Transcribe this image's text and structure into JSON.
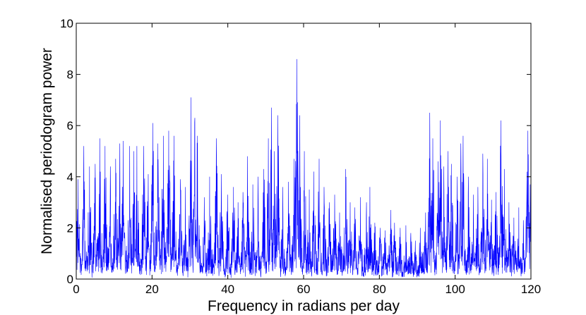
{
  "chart_data": {
    "type": "line",
    "title": "",
    "xlabel": "Frequency in radians per day",
    "ylabel": "Normalised periodogram power",
    "xlim": [
      0,
      120
    ],
    "ylim": [
      0,
      10
    ],
    "xticks": [
      0,
      20,
      40,
      60,
      80,
      100,
      120
    ],
    "yticks": [
      0,
      2,
      4,
      6,
      8,
      10
    ],
    "grid": false,
    "legend": "none",
    "line_color": "#0000ff",
    "peaks": [
      {
        "x": 0.5,
        "y": 3.9
      },
      {
        "x": 2.0,
        "y": 5.2
      },
      {
        "x": 3.5,
        "y": 4.4
      },
      {
        "x": 5.0,
        "y": 4.5
      },
      {
        "x": 6.2,
        "y": 5.5
      },
      {
        "x": 7.6,
        "y": 5.2
      },
      {
        "x": 9.0,
        "y": 4.4
      },
      {
        "x": 10.4,
        "y": 4.7
      },
      {
        "x": 11.5,
        "y": 5.3
      },
      {
        "x": 12.4,
        "y": 5.4
      },
      {
        "x": 14.1,
        "y": 5.2
      },
      {
        "x": 15.2,
        "y": 5.0
      },
      {
        "x": 16.0,
        "y": 5.2
      },
      {
        "x": 17.8,
        "y": 5.2
      },
      {
        "x": 19.0,
        "y": 4.1
      },
      {
        "x": 20.2,
        "y": 6.1
      },
      {
        "x": 21.5,
        "y": 5.3
      },
      {
        "x": 23.0,
        "y": 5.6
      },
      {
        "x": 24.4,
        "y": 5.8
      },
      {
        "x": 25.8,
        "y": 5.6
      },
      {
        "x": 27.5,
        "y": 3.9
      },
      {
        "x": 28.8,
        "y": 3.6
      },
      {
        "x": 30.3,
        "y": 7.1
      },
      {
        "x": 31.3,
        "y": 6.3
      },
      {
        "x": 32.0,
        "y": 5.6
      },
      {
        "x": 33.8,
        "y": 3.2
      },
      {
        "x": 35.2,
        "y": 4.0
      },
      {
        "x": 37.0,
        "y": 5.5
      },
      {
        "x": 38.3,
        "y": 4.1
      },
      {
        "x": 40.0,
        "y": 3.3
      },
      {
        "x": 41.5,
        "y": 3.6
      },
      {
        "x": 42.7,
        "y": 3.0
      },
      {
        "x": 44.0,
        "y": 3.4
      },
      {
        "x": 45.2,
        "y": 4.8
      },
      {
        "x": 46.6,
        "y": 3.7
      },
      {
        "x": 48.0,
        "y": 4.0
      },
      {
        "x": 49.5,
        "y": 4.3
      },
      {
        "x": 50.7,
        "y": 5.5
      },
      {
        "x": 51.5,
        "y": 6.7
      },
      {
        "x": 52.3,
        "y": 5.0
      },
      {
        "x": 53.2,
        "y": 6.4
      },
      {
        "x": 54.5,
        "y": 3.6
      },
      {
        "x": 56.0,
        "y": 3.8
      },
      {
        "x": 57.5,
        "y": 4.7
      },
      {
        "x": 58.2,
        "y": 8.6
      },
      {
        "x": 59.0,
        "y": 6.4
      },
      {
        "x": 60.2,
        "y": 5.0
      },
      {
        "x": 61.5,
        "y": 3.5
      },
      {
        "x": 62.7,
        "y": 4.2
      },
      {
        "x": 64.1,
        "y": 4.7
      },
      {
        "x": 65.4,
        "y": 3.6
      },
      {
        "x": 66.8,
        "y": 3.0
      },
      {
        "x": 68.2,
        "y": 3.3
      },
      {
        "x": 69.5,
        "y": 2.6
      },
      {
        "x": 71.1,
        "y": 4.3
      },
      {
        "x": 72.3,
        "y": 3.0
      },
      {
        "x": 73.5,
        "y": 2.8
      },
      {
        "x": 75.0,
        "y": 3.2
      },
      {
        "x": 76.6,
        "y": 3.0
      },
      {
        "x": 77.5,
        "y": 3.6
      },
      {
        "x": 78.8,
        "y": 2.2
      },
      {
        "x": 80.2,
        "y": 2.0
      },
      {
        "x": 81.5,
        "y": 1.9
      },
      {
        "x": 83.0,
        "y": 2.7
      },
      {
        "x": 84.0,
        "y": 2.2
      },
      {
        "x": 85.5,
        "y": 2.0
      },
      {
        "x": 87.0,
        "y": 2.1
      },
      {
        "x": 88.3,
        "y": 1.8
      },
      {
        "x": 89.5,
        "y": 1.5
      },
      {
        "x": 90.8,
        "y": 2.0
      },
      {
        "x": 92.2,
        "y": 2.6
      },
      {
        "x": 93.3,
        "y": 6.5
      },
      {
        "x": 94.1,
        "y": 5.5
      },
      {
        "x": 95.5,
        "y": 4.6
      },
      {
        "x": 96.1,
        "y": 6.2
      },
      {
        "x": 97.0,
        "y": 4.4
      },
      {
        "x": 98.1,
        "y": 5.0
      },
      {
        "x": 99.0,
        "y": 4.5
      },
      {
        "x": 100.5,
        "y": 4.0
      },
      {
        "x": 101.5,
        "y": 5.3
      },
      {
        "x": 102.1,
        "y": 5.6
      },
      {
        "x": 103.5,
        "y": 4.0
      },
      {
        "x": 104.8,
        "y": 3.3
      },
      {
        "x": 106.0,
        "y": 3.6
      },
      {
        "x": 107.3,
        "y": 4.9
      },
      {
        "x": 108.5,
        "y": 4.7
      },
      {
        "x": 109.6,
        "y": 3.1
      },
      {
        "x": 110.8,
        "y": 3.4
      },
      {
        "x": 112.1,
        "y": 6.2
      },
      {
        "x": 113.0,
        "y": 4.3
      },
      {
        "x": 114.2,
        "y": 3.0
      },
      {
        "x": 115.5,
        "y": 2.4
      },
      {
        "x": 116.8,
        "y": 2.8
      },
      {
        "x": 118.0,
        "y": 2.3
      },
      {
        "x": 119.2,
        "y": 5.8
      },
      {
        "x": 119.8,
        "y": 3.7
      }
    ]
  }
}
